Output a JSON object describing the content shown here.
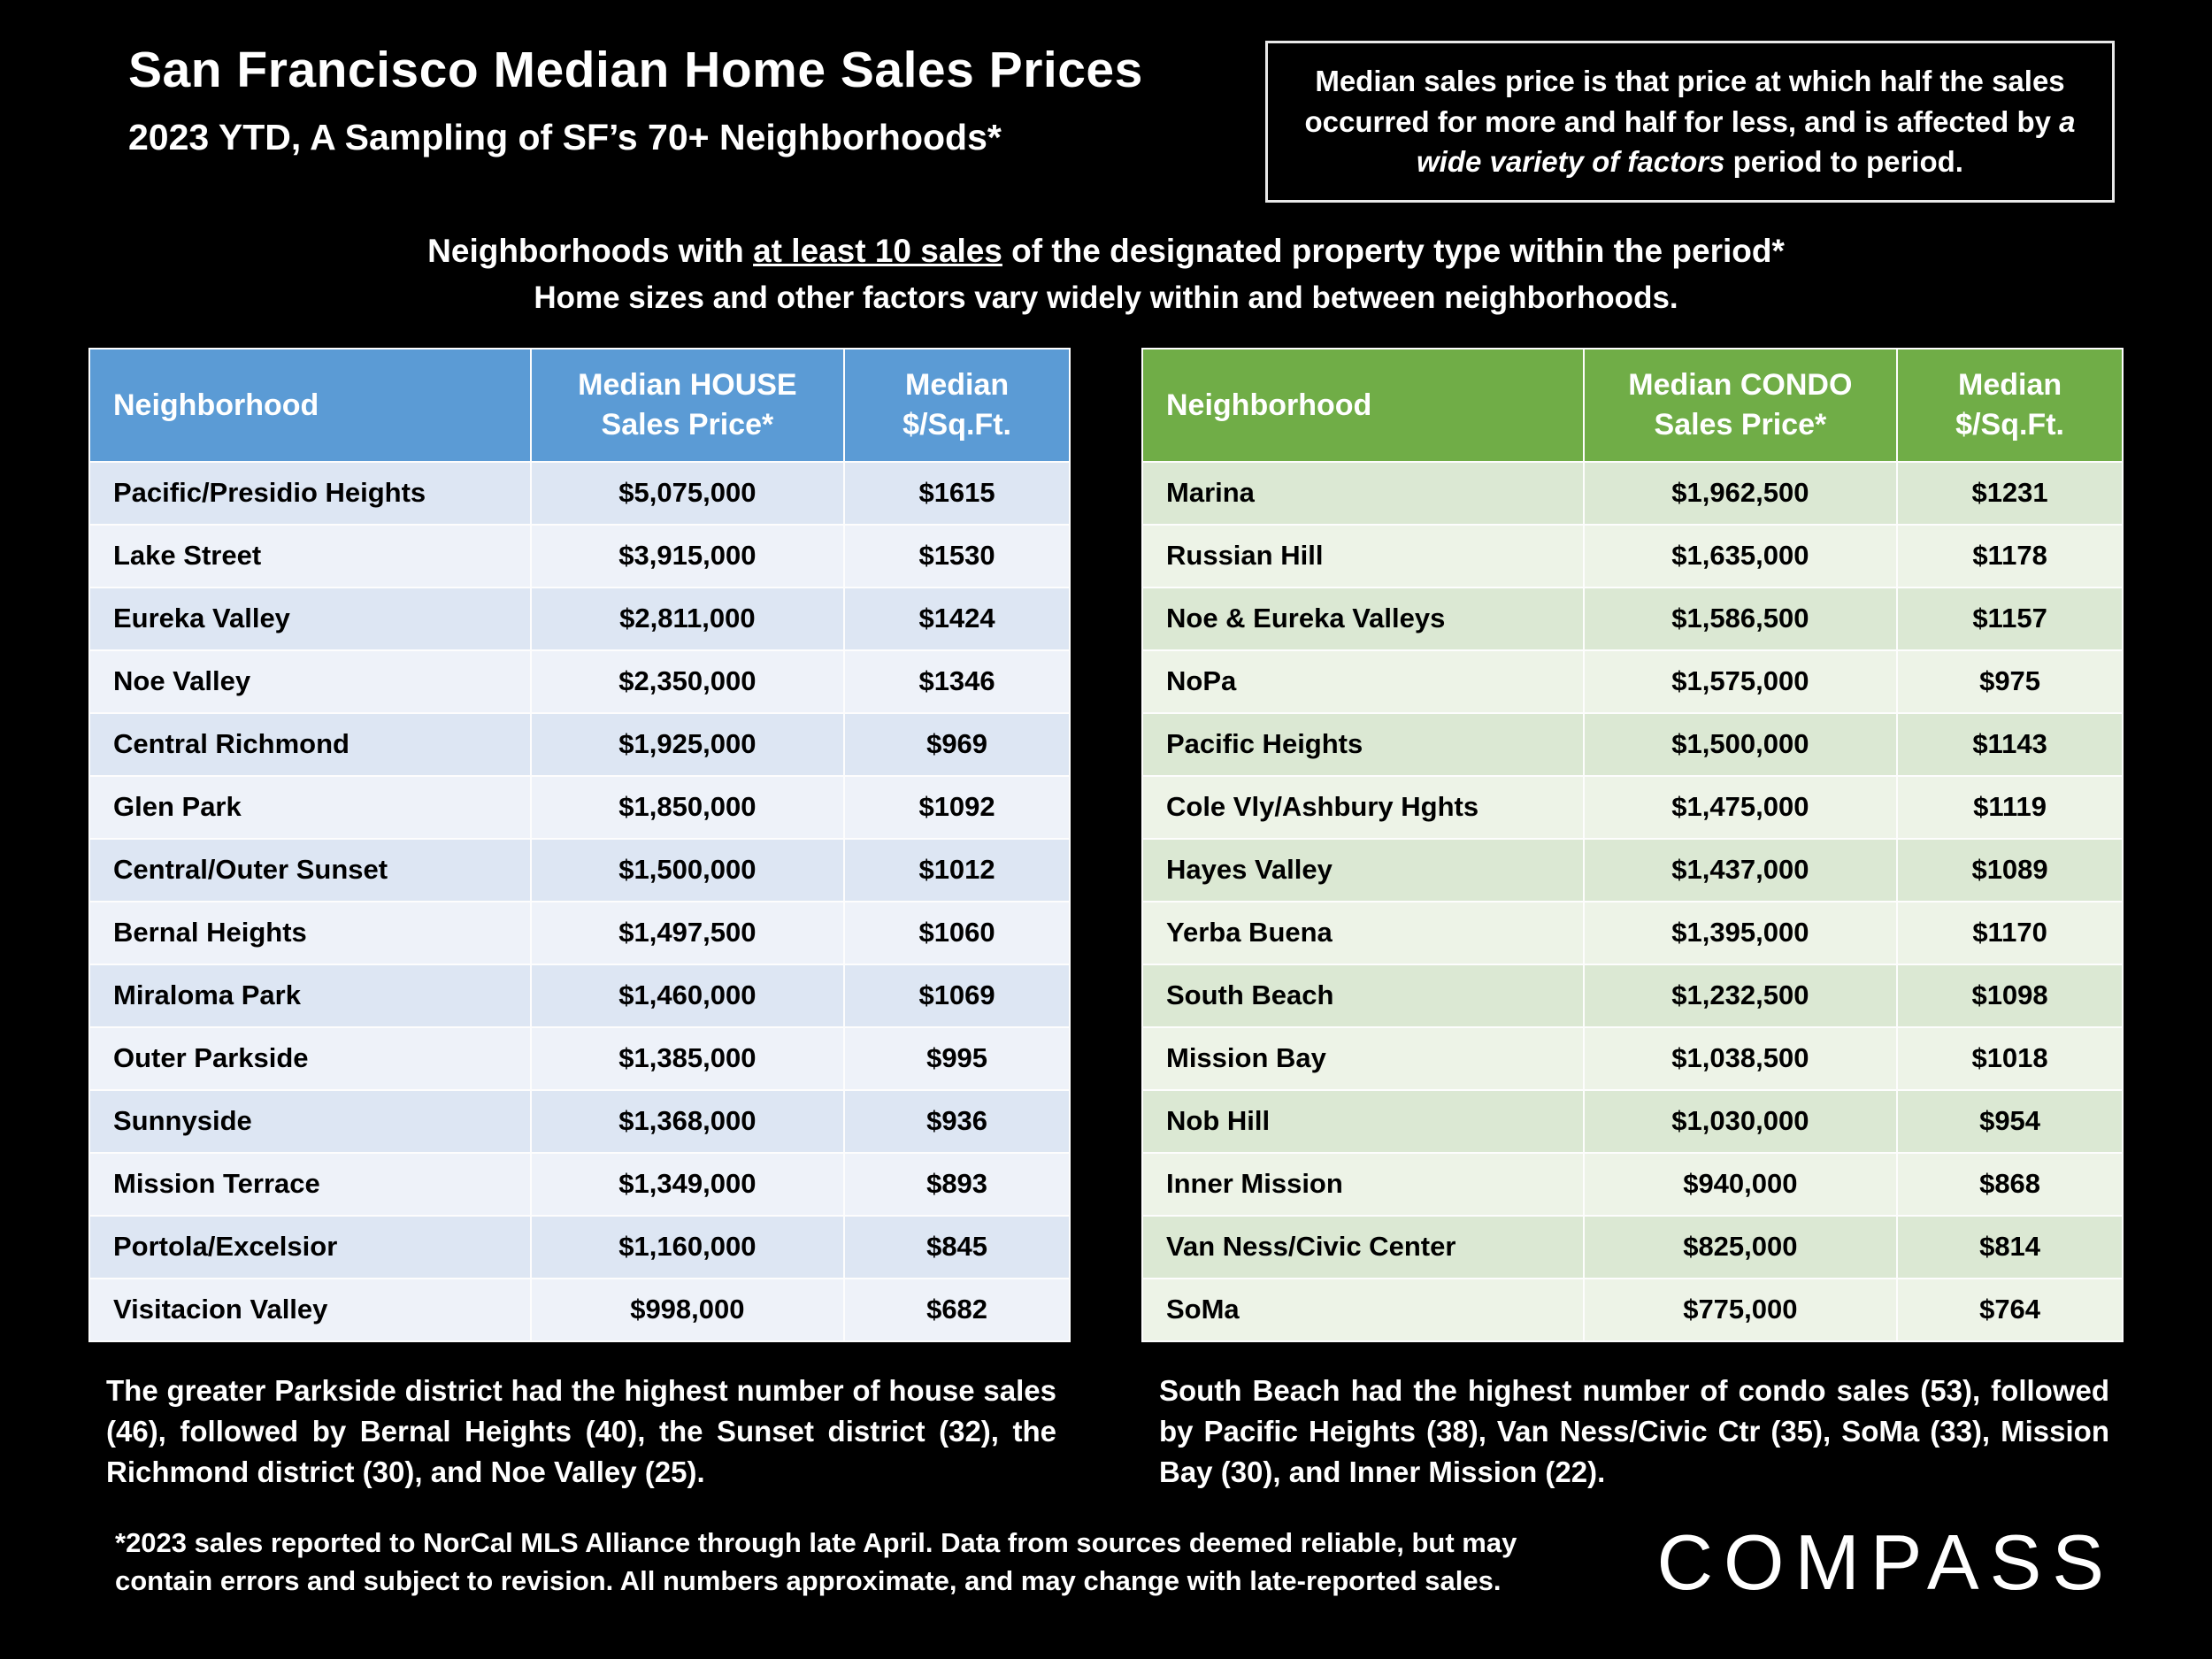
{
  "header": {
    "title": "San Francisco Median Home Sales Prices",
    "subtitle": "2023 YTD, A Sampling of SF’s 70+ Neighborhoods*"
  },
  "info_box": {
    "part1": "Median sales price is that price at which half the sales occurred for more and half for less, and is affected by ",
    "italic": "a wide variety of factors",
    "part2": " period to period."
  },
  "criteria": {
    "line1_prefix": "Neighborhoods with ",
    "line1_underlined": "at least 10 sales",
    "line1_suffix": " of the designated property type within the period*",
    "line2": "Home sizes and other factors vary widely within and between neighborhoods."
  },
  "colors": {
    "background": "#000000",
    "house_header": "#5b9bd5",
    "condo_header": "#70ad47",
    "house_row_odd": "#dde6f3",
    "house_row_even": "#eef2f9",
    "condo_row_odd": "#dbe8d3",
    "condo_row_even": "#edf3e7"
  },
  "chart_data": [
    {
      "type": "table",
      "name": "house-median-prices",
      "columns": [
        "Neighborhood",
        "Median HOUSE\nSales Price*",
        "Median\n$/Sq.Ft."
      ],
      "rows": [
        [
          "Pacific/Presidio Heights",
          "$5,075,000",
          "$1615"
        ],
        [
          "Lake Street",
          "$3,915,000",
          "$1530"
        ],
        [
          "Eureka Valley",
          "$2,811,000",
          "$1424"
        ],
        [
          "Noe Valley",
          "$2,350,000",
          "$1346"
        ],
        [
          "Central Richmond",
          "$1,925,000",
          "$969"
        ],
        [
          "Glen Park",
          "$1,850,000",
          "$1092"
        ],
        [
          "Central/Outer Sunset",
          "$1,500,000",
          "$1012"
        ],
        [
          "Bernal Heights",
          "$1,497,500",
          "$1060"
        ],
        [
          "Miraloma Park",
          "$1,460,000",
          "$1069"
        ],
        [
          "Outer Parkside",
          "$1,385,000",
          "$995"
        ],
        [
          "Sunnyside",
          "$1,368,000",
          "$936"
        ],
        [
          "Mission Terrace",
          "$1,349,000",
          "$893"
        ],
        [
          "Portola/Excelsior",
          "$1,160,000",
          "$845"
        ],
        [
          "Visitacion Valley",
          "$998,000",
          "$682"
        ]
      ]
    },
    {
      "type": "table",
      "name": "condo-median-prices",
      "columns": [
        "Neighborhood",
        "Median CONDO\nSales Price*",
        "Median\n$/Sq.Ft."
      ],
      "rows": [
        [
          "Marina",
          "$1,962,500",
          "$1231"
        ],
        [
          "Russian Hill",
          "$1,635,000",
          "$1178"
        ],
        [
          "Noe & Eureka Valleys",
          "$1,586,500",
          "$1157"
        ],
        [
          "NoPa",
          "$1,575,000",
          "$975"
        ],
        [
          "Pacific Heights",
          "$1,500,000",
          "$1143"
        ],
        [
          "Cole Vly/Ashbury Hghts",
          "$1,475,000",
          "$1119"
        ],
        [
          "Hayes Valley",
          "$1,437,000",
          "$1089"
        ],
        [
          "Yerba Buena",
          "$1,395,000",
          "$1170"
        ],
        [
          "South Beach",
          "$1,232,500",
          "$1098"
        ],
        [
          "Mission Bay",
          "$1,038,500",
          "$1018"
        ],
        [
          "Nob Hill",
          "$1,030,000",
          "$954"
        ],
        [
          "Inner Mission",
          "$940,000",
          "$868"
        ],
        [
          "Van Ness/Civic Center",
          "$825,000",
          "$814"
        ],
        [
          "SoMa",
          "$775,000",
          "$764"
        ]
      ]
    }
  ],
  "notes": {
    "house": "The greater Parkside district had the highest number of house sales (46), followed by Bernal Heights (40), the Sunset district (32), the Richmond district (30), and Noe Valley (25).",
    "condo": "South Beach had the highest number of condo sales (53), followed by Pacific Heights (38), Van Ness/Civic Ctr (35), SoMa (33), Mission Bay (30), and Inner Mission (22)."
  },
  "footnote": "*2023 sales reported to NorCal MLS Alliance through late April. Data from sources deemed reliable, but may contain errors and subject to revision. All numbers approximate, and may change with late-reported sales.",
  "logo": "COMPASS"
}
